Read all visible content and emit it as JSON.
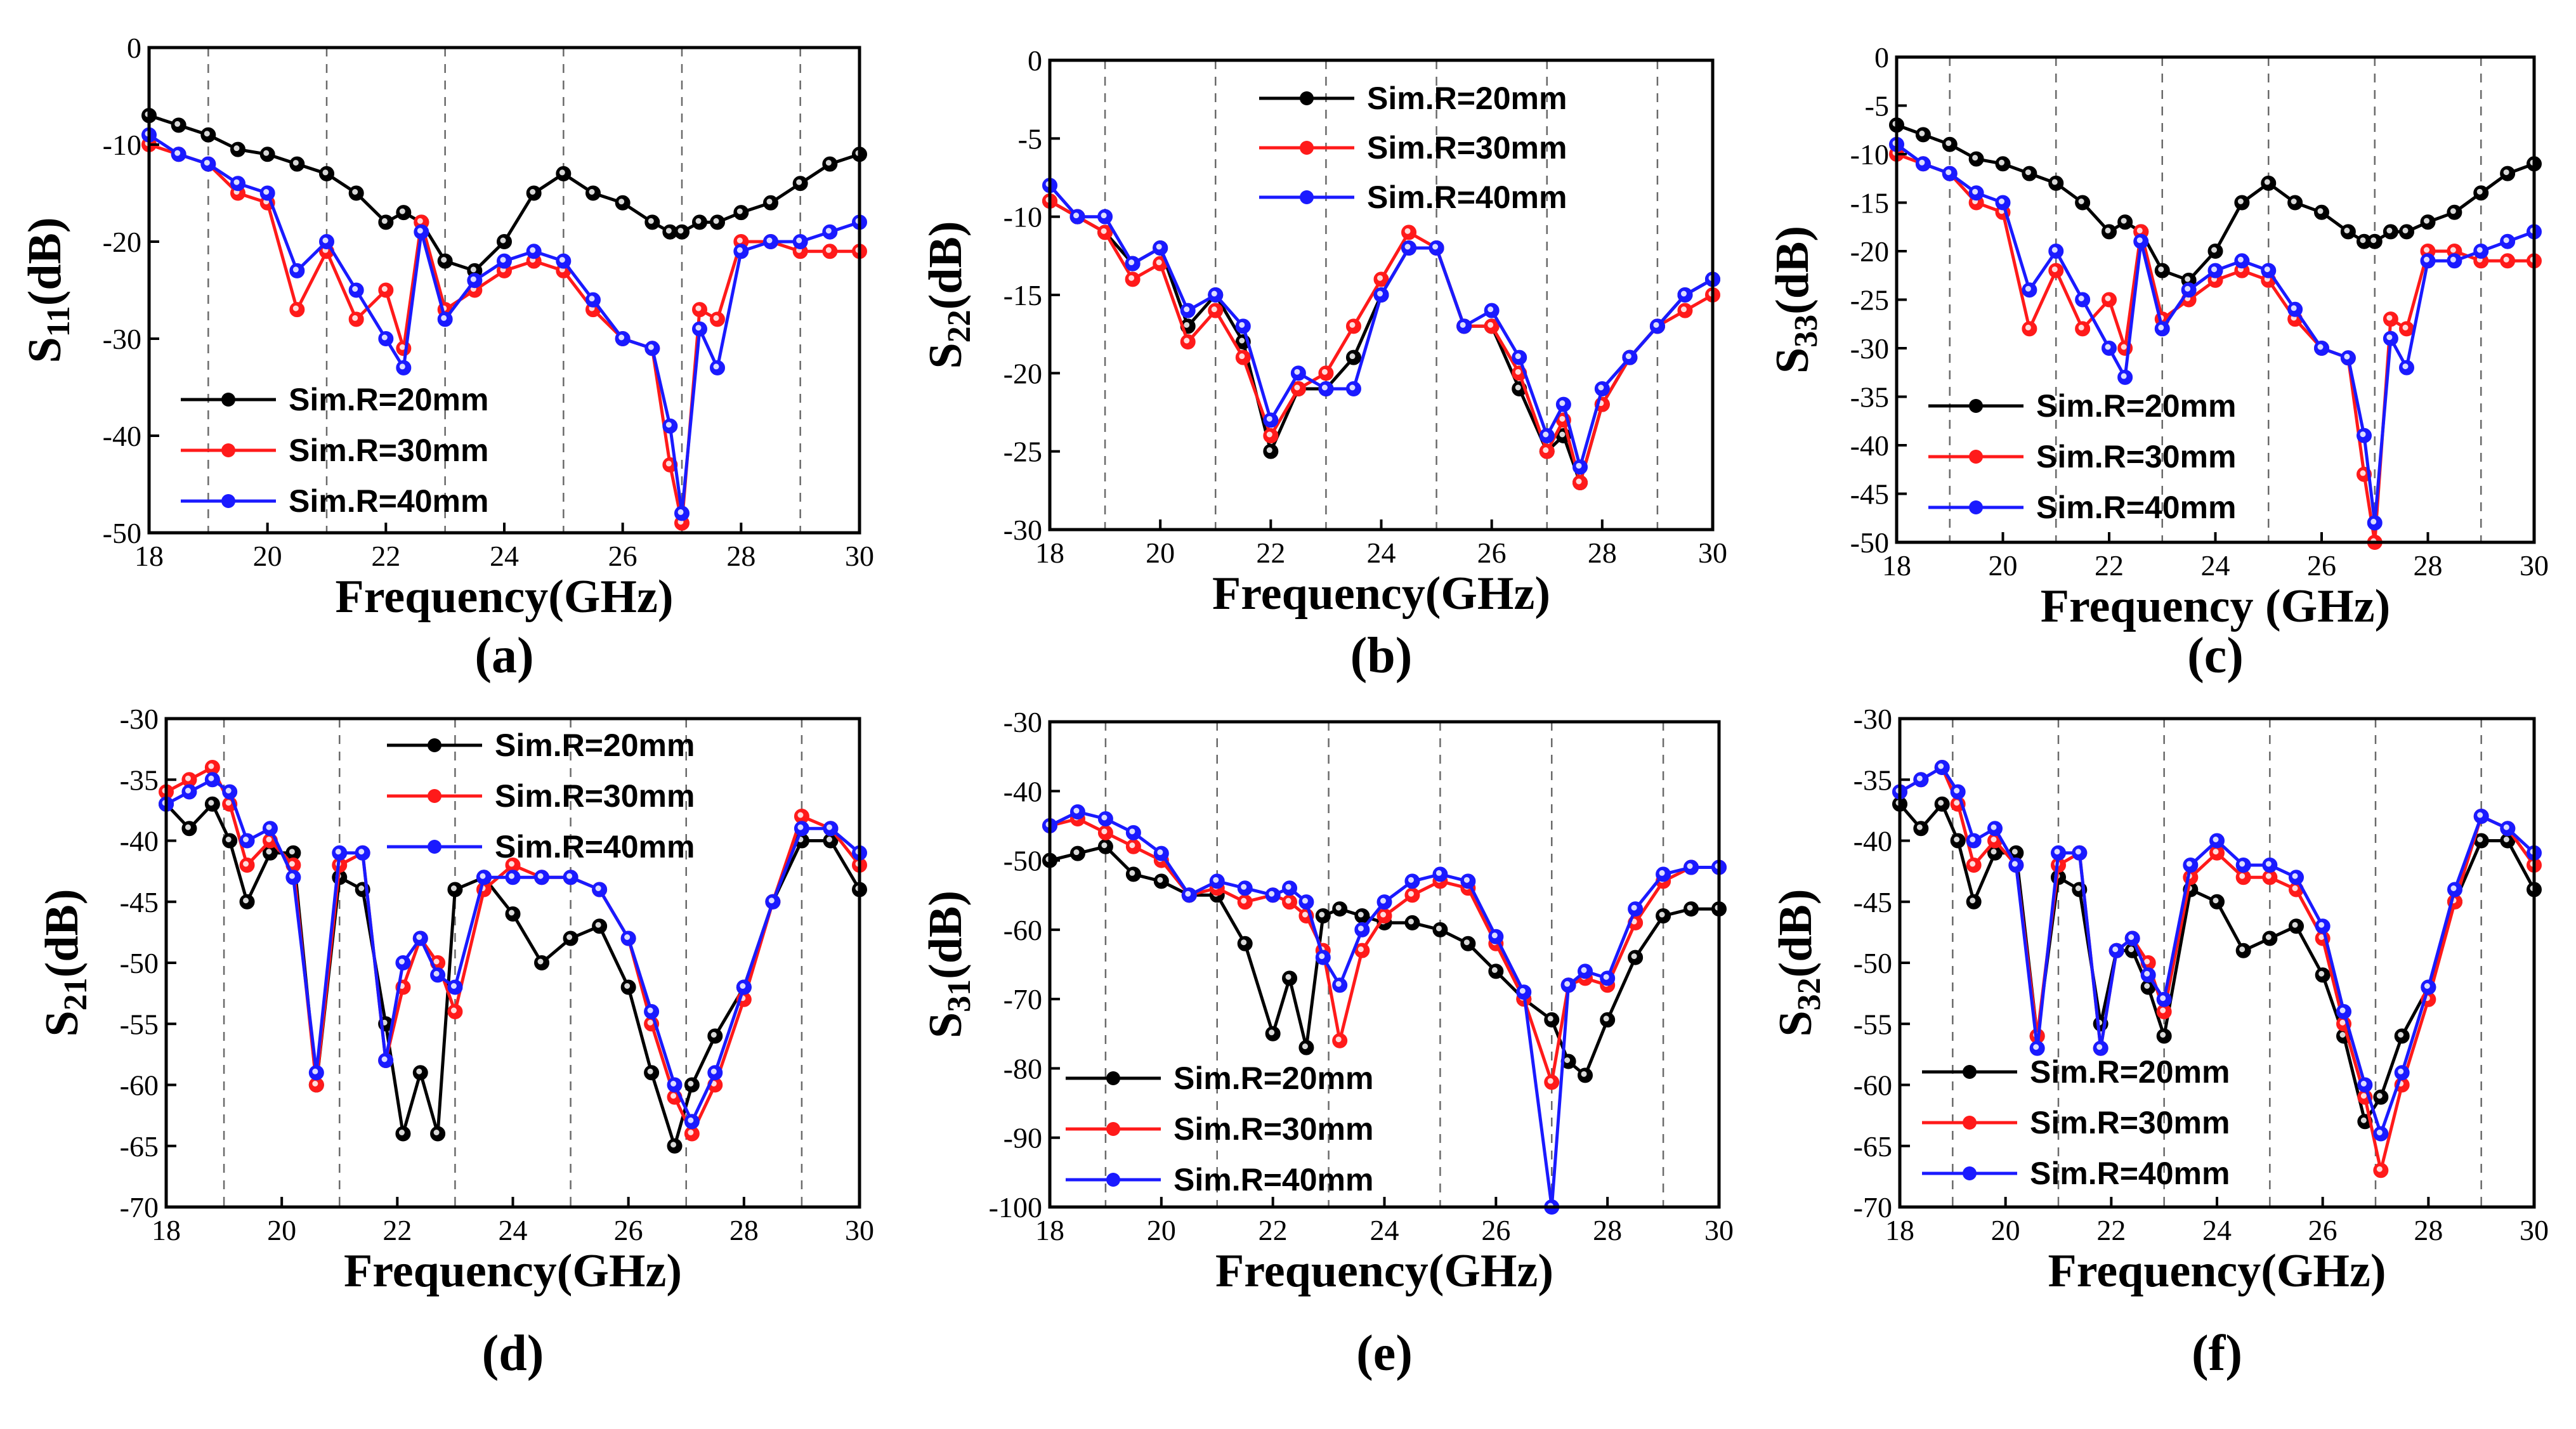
{
  "legend_labels": [
    "Sim.R=20mm",
    "Sim.R=30mm",
    "Sim.R=40mm"
  ],
  "series_colors": {
    "Sim.R=20mm": "#000000",
    "Sim.R=30mm": "#ff1a1a",
    "Sim.R=40mm": "#1a1aff"
  },
  "chart_data": [
    {
      "panel": "(a)",
      "type": "line",
      "xlabel": "Frequency(GHz)",
      "ylabel_main": "S",
      "ylabel_sub": "11",
      "ylabel_tail": "(dB)",
      "xlim": [
        18,
        30
      ],
      "ylim": [
        -50,
        0
      ],
      "xticks": [
        18,
        20,
        22,
        24,
        26,
        28,
        30
      ],
      "yticks": [
        0,
        -10,
        -20,
        -30,
        -40,
        -50
      ],
      "legend_position": "bottom-left",
      "x": [
        18,
        18.5,
        19,
        19.5,
        20,
        20.5,
        21,
        21.5,
        22,
        22.3,
        22.6,
        23,
        23.5,
        24,
        24.5,
        25,
        25.5,
        26,
        26.5,
        26.8,
        27,
        27.3,
        27.6,
        28,
        28.5,
        29,
        29.5,
        30
      ],
      "series": [
        {
          "name": "Sim.R=20mm",
          "values": [
            -7,
            -8,
            -9,
            -10.5,
            -11,
            -12,
            -13,
            -15,
            -18,
            -17,
            -18,
            -22,
            -23,
            -20,
            -15,
            -13,
            -15,
            -16,
            -18,
            -19,
            -19,
            -18,
            -18,
            -17,
            -16,
            -14,
            -12,
            -11
          ]
        },
        {
          "name": "Sim.R=30mm",
          "values": [
            -10,
            -11,
            -12,
            -15,
            -16,
            -27,
            -21,
            -28,
            -25,
            -31,
            -18,
            -27,
            -25,
            -23,
            -22,
            -23,
            -27,
            -30,
            -31,
            -43,
            -49,
            -27,
            -28,
            -20,
            -20,
            -21,
            -21,
            -21
          ]
        },
        {
          "name": "Sim.R=40mm",
          "values": [
            -9,
            -11,
            -12,
            -14,
            -15,
            -23,
            -20,
            -25,
            -30,
            -33,
            -19,
            -28,
            -24,
            -22,
            -21,
            -22,
            -26,
            -30,
            -31,
            -39,
            -48,
            -29,
            -33,
            -21,
            -20,
            -20,
            -19,
            -18
          ]
        }
      ]
    },
    {
      "panel": "(b)",
      "type": "line",
      "xlabel": "Frequency(GHz)",
      "ylabel_main": "S",
      "ylabel_sub": "22",
      "ylabel_tail": "(dB)",
      "xlim": [
        18,
        30
      ],
      "ylim": [
        -30,
        0
      ],
      "xticks": [
        18,
        20,
        22,
        24,
        26,
        28,
        30
      ],
      "yticks": [
        0,
        -5,
        -10,
        -15,
        -20,
        -25,
        -30
      ],
      "legend_position": "top-center",
      "x": [
        18,
        18.5,
        19,
        19.5,
        20,
        20.5,
        21,
        21.5,
        22,
        22.5,
        23,
        23.5,
        24,
        24.5,
        25,
        25.5,
        26,
        26.5,
        27,
        27.3,
        27.6,
        28,
        28.5,
        29,
        29.5,
        30
      ],
      "series": [
        {
          "name": "Sim.R=20mm",
          "values": [
            -9,
            -10,
            -11,
            -13,
            -12,
            -17,
            -15,
            -18,
            -25,
            -21,
            -21,
            -19,
            -15,
            -12,
            -12,
            -17,
            -17,
            -21,
            -25,
            -24,
            -27,
            -22,
            -19,
            -17,
            -15,
            -14
          ]
        },
        {
          "name": "Sim.R=30mm",
          "values": [
            -9,
            -10,
            -11,
            -14,
            -13,
            -18,
            -16,
            -19,
            -24,
            -21,
            -20,
            -17,
            -14,
            -11,
            -12,
            -17,
            -17,
            -20,
            -25,
            -23,
            -27,
            -22,
            -19,
            -17,
            -16,
            -15
          ]
        },
        {
          "name": "Sim.R=40mm",
          "values": [
            -8,
            -10,
            -10,
            -13,
            -12,
            -16,
            -15,
            -17,
            -23,
            -20,
            -21,
            -21,
            -15,
            -12,
            -12,
            -17,
            -16,
            -19,
            -24,
            -22,
            -26,
            -21,
            -19,
            -17,
            -15,
            -14
          ]
        }
      ]
    },
    {
      "panel": "(c)",
      "type": "line",
      "xlabel": "Frequency (GHz)",
      "ylabel_main": "S",
      "ylabel_sub": "33",
      "ylabel_tail": "(dB)",
      "xlim": [
        18,
        30
      ],
      "ylim": [
        -50,
        0
      ],
      "xticks": [
        18,
        20,
        22,
        24,
        26,
        28,
        30
      ],
      "yticks": [
        0,
        -5,
        -10,
        -15,
        -20,
        -25,
        -30,
        -35,
        -40,
        -45,
        -50
      ],
      "legend_position": "bottom-left",
      "x": [
        18,
        18.5,
        19,
        19.5,
        20,
        20.5,
        21,
        21.5,
        22,
        22.3,
        22.6,
        23,
        23.5,
        24,
        24.5,
        25,
        25.5,
        26,
        26.5,
        26.8,
        27,
        27.3,
        27.6,
        28,
        28.5,
        29,
        29.5,
        30
      ],
      "series": [
        {
          "name": "Sim.R=20mm",
          "values": [
            -7,
            -8,
            -9,
            -10.5,
            -11,
            -12,
            -13,
            -15,
            -18,
            -17,
            -18,
            -22,
            -23,
            -20,
            -15,
            -13,
            -15,
            -16,
            -18,
            -19,
            -19,
            -18,
            -18,
            -17,
            -16,
            -14,
            -12,
            -11
          ]
        },
        {
          "name": "Sim.R=30mm",
          "values": [
            -10,
            -11,
            -12,
            -15,
            -16,
            -28,
            -22,
            -28,
            -25,
            -30,
            -18,
            -27,
            -25,
            -23,
            -22,
            -23,
            -27,
            -30,
            -31,
            -43,
            -50,
            -27,
            -28,
            -20,
            -20,
            -21,
            -21,
            -21
          ]
        },
        {
          "name": "Sim.R=40mm",
          "values": [
            -9,
            -11,
            -12,
            -14,
            -15,
            -24,
            -20,
            -25,
            -30,
            -33,
            -19,
            -28,
            -24,
            -22,
            -21,
            -22,
            -26,
            -30,
            -31,
            -39,
            -48,
            -29,
            -32,
            -21,
            -21,
            -20,
            -19,
            -18
          ]
        }
      ]
    },
    {
      "panel": "(d)",
      "type": "line",
      "xlabel": "Frequency(GHz)",
      "ylabel_main": "S",
      "ylabel_sub": "21",
      "ylabel_tail": "(dB)",
      "xlim": [
        18,
        30
      ],
      "ylim": [
        -70,
        -30
      ],
      "xticks": [
        18,
        20,
        22,
        24,
        26,
        28,
        30
      ],
      "yticks": [
        -30,
        -35,
        -40,
        -45,
        -50,
        -55,
        -60,
        -65,
        -70
      ],
      "legend_position": "top-right",
      "x": [
        18,
        18.4,
        18.8,
        19.1,
        19.4,
        19.8,
        20.2,
        20.6,
        21,
        21.4,
        21.8,
        22.1,
        22.4,
        22.7,
        23,
        23.5,
        24,
        24.5,
        25,
        25.5,
        26,
        26.4,
        26.8,
        27.1,
        27.5,
        28,
        28.5,
        29,
        29.5,
        30
      ],
      "series": [
        {
          "name": "Sim.R=20mm",
          "values": [
            -37,
            -39,
            -37,
            -40,
            -45,
            -41,
            -41,
            -60,
            -43,
            -44,
            -55,
            -64,
            -59,
            -64,
            -44,
            -43,
            -46,
            -50,
            -48,
            -47,
            -52,
            -59,
            -65,
            -60,
            -56,
            -52,
            -45,
            -40,
            -40,
            -44
          ]
        },
        {
          "name": "Sim.R=30mm",
          "values": [
            -36,
            -35,
            -34,
            -37,
            -42,
            -40,
            -42,
            -60,
            -42,
            -41,
            -58,
            -52,
            -48,
            -50,
            -54,
            -44,
            -42,
            -43,
            -43,
            -44,
            -48,
            -55,
            -61,
            -64,
            -60,
            -53,
            -45,
            -38,
            -39,
            -42
          ]
        },
        {
          "name": "Sim.R=40mm",
          "values": [
            -37,
            -36,
            -35,
            -36,
            -40,
            -39,
            -43,
            -59,
            -41,
            -41,
            -58,
            -50,
            -48,
            -51,
            -52,
            -43,
            -43,
            -43,
            -43,
            -44,
            -48,
            -54,
            -60,
            -63,
            -59,
            -52,
            -45,
            -39,
            -39,
            -41
          ]
        }
      ]
    },
    {
      "panel": "(e)",
      "type": "line",
      "xlabel": "Frequency(GHz)",
      "ylabel_main": "S",
      "ylabel_sub": "31",
      "ylabel_tail": "(dB)",
      "xlim": [
        18,
        30
      ],
      "ylim": [
        -100,
        -30
      ],
      "xticks": [
        18,
        20,
        22,
        24,
        26,
        28,
        30
      ],
      "yticks": [
        -30,
        -40,
        -50,
        -60,
        -70,
        -80,
        -90,
        -100
      ],
      "legend_position": "bottom-left",
      "x": [
        18,
        18.5,
        19,
        19.5,
        20,
        20.5,
        21,
        21.5,
        22,
        22.3,
        22.6,
        22.9,
        23.2,
        23.6,
        24,
        24.5,
        25,
        25.5,
        26,
        26.5,
        27,
        27.3,
        27.6,
        28,
        28.5,
        29,
        29.5,
        30
      ],
      "series": [
        {
          "name": "Sim.R=20mm",
          "values": [
            -50,
            -49,
            -48,
            -52,
            -53,
            -55,
            -55,
            -62,
            -75,
            -67,
            -77,
            -58,
            -57,
            -58,
            -59,
            -59,
            -60,
            -62,
            -66,
            -70,
            -73,
            -79,
            -81,
            -73,
            -64,
            -58,
            -57,
            -57
          ]
        },
        {
          "name": "Sim.R=30mm",
          "values": [
            -45,
            -44,
            -46,
            -48,
            -50,
            -55,
            -54,
            -56,
            -55,
            -56,
            -58,
            -63,
            -76,
            -63,
            -58,
            -55,
            -53,
            -54,
            -62,
            -70,
            -82,
            -68,
            -67,
            -68,
            -59,
            -53,
            -51,
            -51
          ]
        },
        {
          "name": "Sim.R=40mm",
          "values": [
            -45,
            -43,
            -44,
            -46,
            -49,
            -55,
            -53,
            -54,
            -55,
            -54,
            -56,
            -64,
            -68,
            -60,
            -56,
            -53,
            -52,
            -53,
            -61,
            -69,
            -100,
            -68,
            -66,
            -67,
            -57,
            -52,
            -51,
            -51
          ]
        }
      ]
    },
    {
      "panel": "(f)",
      "type": "line",
      "xlabel": "Frequency(GHz)",
      "ylabel_main": "S",
      "ylabel_sub": "32",
      "ylabel_tail": "(dB)",
      "xlim": [
        18,
        30
      ],
      "ylim": [
        -70,
        -30
      ],
      "xticks": [
        18,
        20,
        22,
        24,
        26,
        28,
        30
      ],
      "yticks": [
        -30,
        -35,
        -40,
        -45,
        -50,
        -55,
        -60,
        -65,
        -70
      ],
      "legend_position": "bottom-left",
      "x": [
        18,
        18.4,
        18.8,
        19.1,
        19.4,
        19.8,
        20.2,
        20.6,
        21,
        21.4,
        21.8,
        22.1,
        22.4,
        22.7,
        23,
        23.5,
        24,
        24.5,
        25,
        25.5,
        26,
        26.4,
        26.8,
        27.1,
        27.5,
        28,
        28.5,
        29,
        29.5,
        30
      ],
      "series": [
        {
          "name": "Sim.R=20mm",
          "values": [
            -37,
            -39,
            -37,
            -40,
            -45,
            -41,
            -41,
            -56,
            -43,
            -44,
            -55,
            -49,
            -49,
            -52,
            -56,
            -44,
            -45,
            -49,
            -48,
            -47,
            -51,
            -56,
            -63,
            -61,
            -56,
            -52,
            -45,
            -40,
            -40,
            -44
          ]
        },
        {
          "name": "Sim.R=30mm",
          "values": [
            -36,
            -35,
            -34,
            -37,
            -42,
            -40,
            -42,
            -56,
            -42,
            -41,
            -57,
            -49,
            -48,
            -50,
            -54,
            -43,
            -41,
            -43,
            -43,
            -44,
            -48,
            -55,
            -61,
            -67,
            -60,
            -53,
            -45,
            -38,
            -39,
            -42
          ]
        },
        {
          "name": "Sim.R=40mm",
          "values": [
            -36,
            -35,
            -34,
            -36,
            -40,
            -39,
            -42,
            -57,
            -41,
            -41,
            -57,
            -49,
            -48,
            -51,
            -53,
            -42,
            -40,
            -42,
            -42,
            -43,
            -47,
            -54,
            -60,
            -64,
            -59,
            -52,
            -44,
            -38,
            -39,
            -41
          ]
        }
      ]
    }
  ]
}
